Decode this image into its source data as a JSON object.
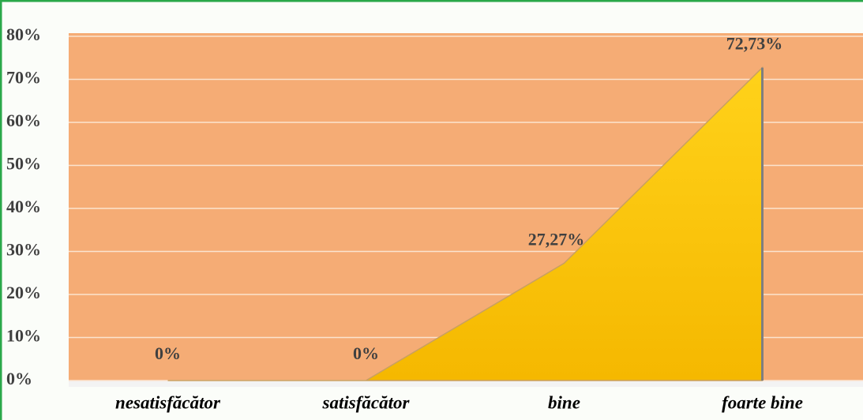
{
  "chart_data": {
    "type": "area",
    "categories": [
      "nesatisfăcător",
      "satisfăcător",
      "bine",
      "foarte bine"
    ],
    "values": [
      0,
      0,
      27.27,
      72.73
    ],
    "value_labels": [
      "0%",
      "0%",
      "27,27%",
      "72,73%"
    ],
    "color": "#ffc000",
    "plot_background": "#f5ac75",
    "ylim": [
      0,
      80
    ],
    "yticks": [
      {
        "value": 0,
        "label": "0%"
      },
      {
        "value": 10,
        "label": "10%"
      },
      {
        "value": 20,
        "label": "20%"
      },
      {
        "value": 30,
        "label": "30%"
      },
      {
        "value": 40,
        "label": "40%"
      },
      {
        "value": 50,
        "label": "50%"
      },
      {
        "value": 60,
        "label": "60%"
      },
      {
        "value": 70,
        "label": "70%"
      },
      {
        "value": 80,
        "label": "80%"
      }
    ],
    "grid": true
  }
}
